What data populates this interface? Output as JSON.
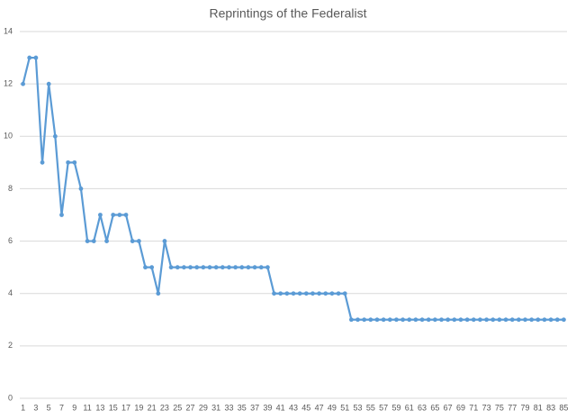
{
  "chart_data": {
    "type": "line",
    "title": "Reprintings of the Federalist",
    "categories": [
      1,
      null,
      3,
      null,
      5,
      null,
      7,
      null,
      9,
      null,
      11,
      null,
      13,
      null,
      15,
      null,
      17,
      null,
      19,
      null,
      21,
      null,
      23,
      null,
      25,
      null,
      27,
      null,
      29,
      null,
      31,
      null,
      33,
      null,
      35,
      null,
      37,
      null,
      39,
      null,
      41,
      null,
      43,
      null,
      45,
      null,
      47,
      null,
      49,
      null,
      51,
      null,
      53,
      null,
      55,
      null,
      57,
      null,
      59,
      null,
      61,
      null,
      63,
      null,
      65,
      null,
      67,
      null,
      69,
      null,
      71,
      null,
      73,
      null,
      75,
      null,
      77,
      null,
      79,
      null,
      81,
      null,
      83,
      null,
      85
    ],
    "values": [
      12,
      13,
      13,
      9,
      12,
      10,
      7,
      9,
      9,
      8,
      6,
      6,
      7,
      6,
      7,
      7,
      7,
      6,
      6,
      5,
      5,
      4,
      6,
      5,
      5,
      5,
      5,
      5,
      5,
      5,
      5,
      5,
      5,
      5,
      5,
      5,
      5,
      5,
      5,
      4,
      4,
      4,
      4,
      4,
      4,
      4,
      4,
      4,
      4,
      4,
      4,
      3,
      3,
      3,
      3,
      3,
      3,
      3,
      3,
      3,
      3,
      3,
      3,
      3,
      3,
      3,
      3,
      3,
      3,
      3,
      3,
      3,
      3,
      3,
      3,
      3,
      3,
      3,
      3,
      3,
      3,
      3,
      3,
      3,
      3
    ],
    "color": "#5b9bd5",
    "ylim": [
      0,
      14
    ],
    "yticks": [
      0,
      2,
      4,
      6,
      8,
      10,
      12,
      14
    ],
    "grid": true
  }
}
